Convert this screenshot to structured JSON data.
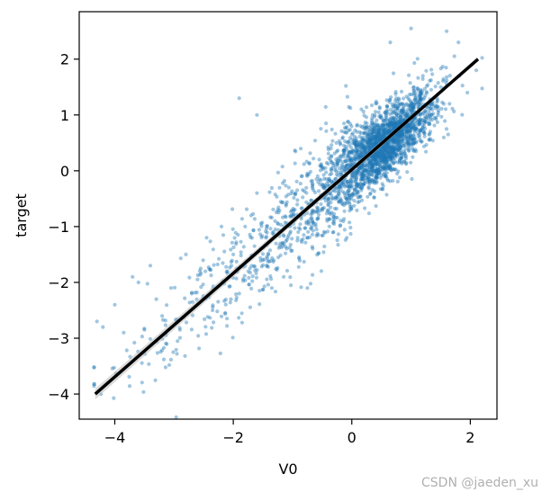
{
  "chart_data": {
    "type": "scatter",
    "xlabel": "V0",
    "ylabel": "target",
    "xlim": [
      -4.6,
      2.45
    ],
    "ylim": [
      -4.45,
      2.85
    ],
    "xticks": [
      -4,
      -2,
      0,
      2
    ],
    "yticks": [
      -4,
      -3,
      -2,
      -1,
      0,
      1,
      2
    ],
    "grid": false,
    "legend": "none",
    "point_color": "#1f77b4",
    "line_color": "#000000",
    "regression_line": {
      "x": [
        -4.33,
        2.13
      ],
      "y": [
        -4.0,
        2.0
      ]
    },
    "sample_points": {
      "x": [
        -4.3,
        -4.2,
        -4.0,
        -3.85,
        -3.7,
        -3.6,
        -3.5,
        -3.4,
        -3.3,
        -3.2,
        -3.05,
        -2.9,
        -2.8,
        -2.7,
        -2.55,
        -2.45,
        -2.35,
        -2.2,
        -2.1,
        -2.0,
        -1.9,
        -1.8,
        -1.7,
        -1.6,
        -1.5,
        -1.45,
        -1.35,
        -1.25,
        -1.15,
        -1.05,
        -0.95,
        -0.85,
        -0.75,
        -0.65,
        -0.55,
        -0.45,
        -0.35,
        -0.25,
        -0.15,
        -0.05,
        0.05,
        0.15,
        0.25,
        0.35,
        0.45,
        0.55,
        0.65,
        0.75,
        0.85,
        0.95,
        1.05,
        1.2,
        1.35,
        1.5,
        1.65,
        1.8,
        1.95,
        2.1,
        -1.9,
        -1.6,
        0.65,
        1.0,
        1.6
      ],
      "y": [
        -2.7,
        -2.8,
        -2.4,
        -2.9,
        -1.9,
        -2.0,
        -2.85,
        -1.7,
        -2.3,
        -2.6,
        -2.1,
        -2.85,
        -1.5,
        -2.2,
        -1.75,
        -1.2,
        -2.5,
        -1.0,
        -1.8,
        -1.5,
        -2.2,
        -1.0,
        -0.8,
        -0.4,
        -1.6,
        -1.2,
        -2.1,
        -0.7,
        -1.9,
        -1.0,
        -0.4,
        -0.1,
        -1.2,
        -0.6,
        0.2,
        -0.4,
        0.4,
        -0.2,
        0.6,
        0.1,
        0.5,
        0.8,
        0.3,
        1.0,
        0.6,
        0.9,
        0.2,
        1.3,
        0.7,
        1.1,
        0.5,
        1.7,
        1.0,
        1.5,
        1.2,
        2.3,
        1.4,
        1.8,
        1.3,
        1.0,
        2.3,
        2.55,
        2.5
      ]
    }
  },
  "watermark": "CSDN @jaeden_xu"
}
